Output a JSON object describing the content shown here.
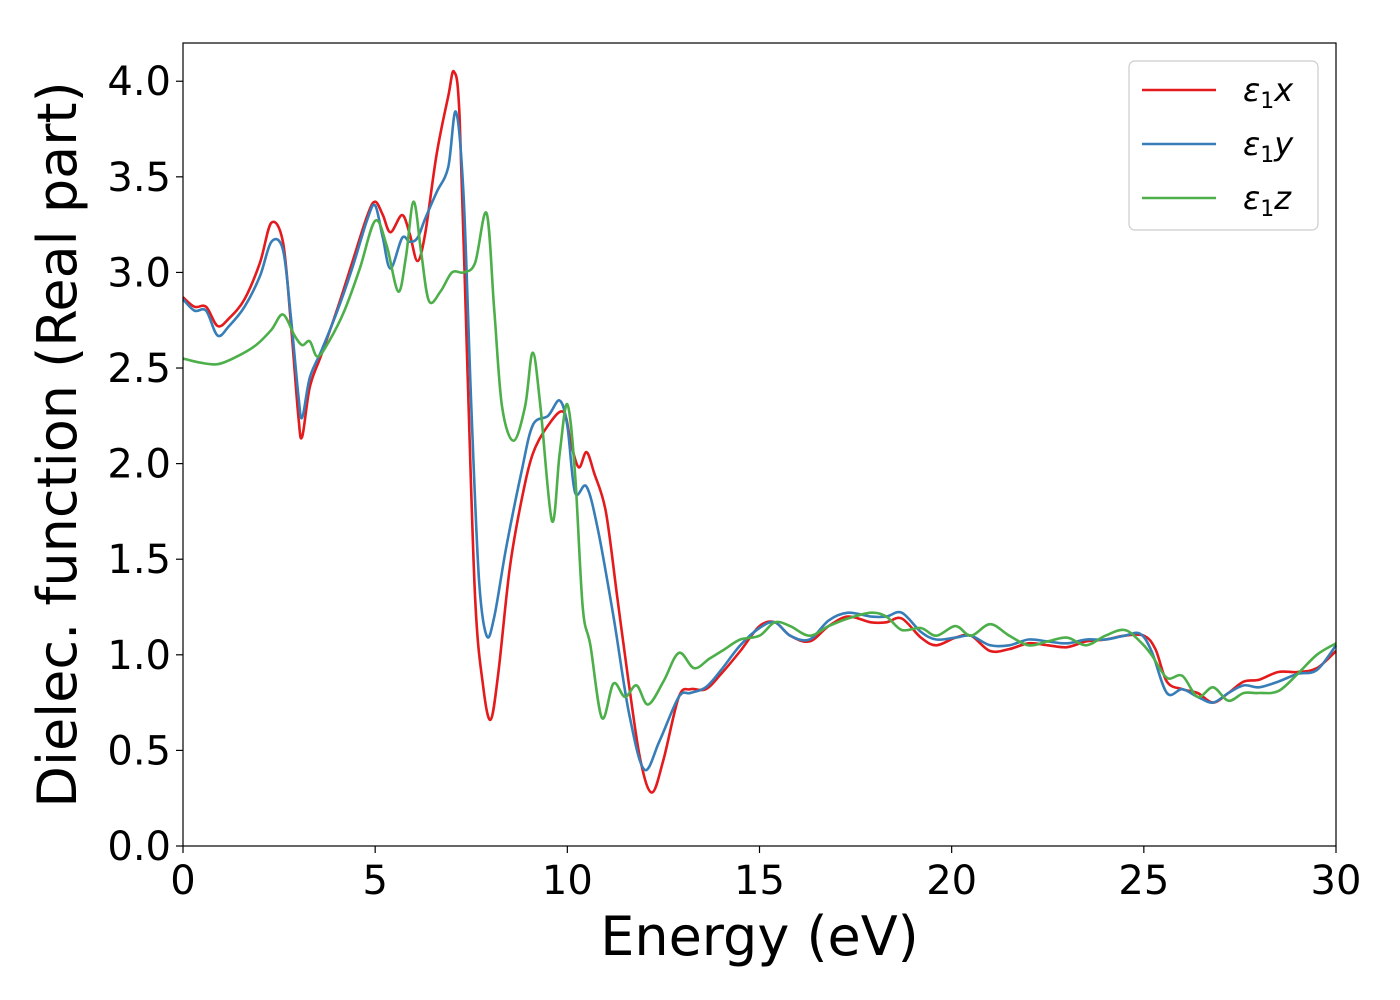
{
  "chart_data": {
    "type": "line",
    "title": "",
    "xlabel": "Energy (eV)",
    "ylabel": "Dielec. function (Real part)",
    "xlim": [
      0,
      30
    ],
    "ylim": [
      0,
      4.2
    ],
    "xticks": [
      0,
      5,
      10,
      15,
      20,
      25,
      30
    ],
    "xtick_labels": [
      "0",
      "5",
      "10",
      "15",
      "20",
      "25",
      "30"
    ],
    "yticks": [
      0,
      0.5,
      1.0,
      1.5,
      2.0,
      2.5,
      3.0,
      3.5,
      4.0
    ],
    "ytick_labels": [
      "0.0",
      "0.5",
      "1.0",
      "1.5",
      "2.0",
      "2.5",
      "3.0",
      "3.5",
      "4.0"
    ],
    "grid": false,
    "legend_position": "top-right",
    "series": [
      {
        "name": "ε₁x",
        "legend_main": "ε",
        "legend_sub": "1",
        "legend_tail": "x",
        "color": "#e41a1c",
        "points": [
          [
            0,
            2.87
          ],
          [
            0.3,
            2.82
          ],
          [
            0.6,
            2.82
          ],
          [
            0.9,
            2.72
          ],
          [
            1.2,
            2.76
          ],
          [
            1.6,
            2.86
          ],
          [
            2.0,
            3.05
          ],
          [
            2.3,
            3.26
          ],
          [
            2.6,
            3.16
          ],
          [
            2.8,
            2.75
          ],
          [
            3.0,
            2.25
          ],
          [
            3.1,
            2.14
          ],
          [
            3.3,
            2.4
          ],
          [
            3.6,
            2.57
          ],
          [
            4.0,
            2.8
          ],
          [
            4.4,
            3.05
          ],
          [
            4.8,
            3.3
          ],
          [
            5.0,
            3.37
          ],
          [
            5.2,
            3.3
          ],
          [
            5.4,
            3.21
          ],
          [
            5.7,
            3.3
          ],
          [
            5.9,
            3.2
          ],
          [
            6.1,
            3.06
          ],
          [
            6.3,
            3.2
          ],
          [
            6.6,
            3.62
          ],
          [
            6.9,
            3.92
          ],
          [
            7.05,
            4.05
          ],
          [
            7.2,
            3.8
          ],
          [
            7.4,
            2.5
          ],
          [
            7.6,
            1.3
          ],
          [
            7.8,
            0.85
          ],
          [
            8.0,
            0.66
          ],
          [
            8.2,
            0.9
          ],
          [
            8.5,
            1.45
          ],
          [
            8.8,
            1.8
          ],
          [
            9.1,
            2.05
          ],
          [
            9.5,
            2.2
          ],
          [
            9.9,
            2.27
          ],
          [
            10.1,
            2.1
          ],
          [
            10.3,
            1.98
          ],
          [
            10.5,
            2.06
          ],
          [
            10.7,
            1.95
          ],
          [
            11.0,
            1.75
          ],
          [
            11.3,
            1.3
          ],
          [
            11.6,
            0.85
          ],
          [
            11.9,
            0.45
          ],
          [
            12.2,
            0.28
          ],
          [
            12.5,
            0.45
          ],
          [
            12.9,
            0.78
          ],
          [
            13.2,
            0.82
          ],
          [
            13.6,
            0.82
          ],
          [
            14.0,
            0.9
          ],
          [
            14.5,
            1.02
          ],
          [
            15.0,
            1.15
          ],
          [
            15.4,
            1.17
          ],
          [
            15.8,
            1.1
          ],
          [
            16.3,
            1.07
          ],
          [
            16.8,
            1.15
          ],
          [
            17.3,
            1.2
          ],
          [
            17.9,
            1.17
          ],
          [
            18.3,
            1.17
          ],
          [
            18.7,
            1.19
          ],
          [
            19.2,
            1.09
          ],
          [
            19.6,
            1.05
          ],
          [
            20.1,
            1.09
          ],
          [
            20.5,
            1.1
          ],
          [
            21.0,
            1.02
          ],
          [
            21.5,
            1.03
          ],
          [
            22.0,
            1.06
          ],
          [
            22.5,
            1.05
          ],
          [
            23.0,
            1.04
          ],
          [
            23.5,
            1.07
          ],
          [
            24.0,
            1.08
          ],
          [
            24.5,
            1.1
          ],
          [
            25.0,
            1.1
          ],
          [
            25.3,
            1.03
          ],
          [
            25.6,
            0.86
          ],
          [
            26.0,
            0.82
          ],
          [
            26.4,
            0.8
          ],
          [
            26.8,
            0.75
          ],
          [
            27.2,
            0.8
          ],
          [
            27.6,
            0.86
          ],
          [
            28.0,
            0.87
          ],
          [
            28.5,
            0.91
          ],
          [
            29.0,
            0.91
          ],
          [
            29.5,
            0.93
          ],
          [
            30.0,
            1.02
          ]
        ]
      },
      {
        "name": "ε₁y",
        "legend_main": "ε",
        "legend_sub": "1",
        "legend_tail": "y",
        "color": "#377eb8",
        "points": [
          [
            0,
            2.86
          ],
          [
            0.3,
            2.8
          ],
          [
            0.6,
            2.8
          ],
          [
            0.9,
            2.67
          ],
          [
            1.2,
            2.72
          ],
          [
            1.6,
            2.82
          ],
          [
            2.0,
            2.98
          ],
          [
            2.3,
            3.16
          ],
          [
            2.6,
            3.12
          ],
          [
            2.8,
            2.78
          ],
          [
            3.0,
            2.36
          ],
          [
            3.1,
            2.24
          ],
          [
            3.3,
            2.45
          ],
          [
            3.6,
            2.59
          ],
          [
            4.0,
            2.79
          ],
          [
            4.4,
            3.02
          ],
          [
            4.8,
            3.28
          ],
          [
            5.0,
            3.35
          ],
          [
            5.2,
            3.18
          ],
          [
            5.4,
            3.02
          ],
          [
            5.7,
            3.18
          ],
          [
            5.9,
            3.16
          ],
          [
            6.1,
            3.18
          ],
          [
            6.3,
            3.28
          ],
          [
            6.6,
            3.42
          ],
          [
            6.9,
            3.55
          ],
          [
            7.1,
            3.84
          ],
          [
            7.3,
            3.4
          ],
          [
            7.5,
            2.3
          ],
          [
            7.7,
            1.4
          ],
          [
            7.9,
            1.1
          ],
          [
            8.1,
            1.2
          ],
          [
            8.4,
            1.55
          ],
          [
            8.8,
            1.95
          ],
          [
            9.1,
            2.2
          ],
          [
            9.5,
            2.25
          ],
          [
            9.8,
            2.33
          ],
          [
            10.0,
            2.2
          ],
          [
            10.2,
            1.85
          ],
          [
            10.5,
            1.88
          ],
          [
            10.8,
            1.65
          ],
          [
            11.2,
            1.2
          ],
          [
            11.6,
            0.7
          ],
          [
            12.0,
            0.4
          ],
          [
            12.4,
            0.55
          ],
          [
            12.9,
            0.78
          ],
          [
            13.2,
            0.8
          ],
          [
            13.6,
            0.83
          ],
          [
            14.0,
            0.92
          ],
          [
            14.5,
            1.05
          ],
          [
            15.0,
            1.14
          ],
          [
            15.4,
            1.17
          ],
          [
            15.8,
            1.1
          ],
          [
            16.3,
            1.08
          ],
          [
            16.8,
            1.18
          ],
          [
            17.3,
            1.22
          ],
          [
            17.9,
            1.2
          ],
          [
            18.3,
            1.2
          ],
          [
            18.7,
            1.22
          ],
          [
            19.2,
            1.12
          ],
          [
            19.6,
            1.08
          ],
          [
            20.1,
            1.09
          ],
          [
            20.5,
            1.1
          ],
          [
            21.0,
            1.05
          ],
          [
            21.5,
            1.05
          ],
          [
            22.0,
            1.08
          ],
          [
            22.5,
            1.07
          ],
          [
            23.0,
            1.06
          ],
          [
            23.5,
            1.08
          ],
          [
            24.0,
            1.08
          ],
          [
            24.5,
            1.1
          ],
          [
            24.9,
            1.11
          ],
          [
            25.2,
            1.02
          ],
          [
            25.6,
            0.8
          ],
          [
            26.0,
            0.82
          ],
          [
            26.4,
            0.78
          ],
          [
            26.8,
            0.75
          ],
          [
            27.2,
            0.8
          ],
          [
            27.6,
            0.84
          ],
          [
            28.0,
            0.83
          ],
          [
            28.5,
            0.86
          ],
          [
            29.0,
            0.9
          ],
          [
            29.5,
            0.92
          ],
          [
            30.0,
            1.05
          ]
        ]
      },
      {
        "name": "ε₁z",
        "legend_main": "ε",
        "legend_sub": "1",
        "legend_tail": "z",
        "color": "#4daf4a",
        "points": [
          [
            0,
            2.55
          ],
          [
            0.4,
            2.53
          ],
          [
            0.9,
            2.52
          ],
          [
            1.4,
            2.56
          ],
          [
            1.9,
            2.62
          ],
          [
            2.3,
            2.7
          ],
          [
            2.6,
            2.78
          ],
          [
            2.9,
            2.67
          ],
          [
            3.1,
            2.62
          ],
          [
            3.3,
            2.64
          ],
          [
            3.5,
            2.56
          ],
          [
            3.8,
            2.64
          ],
          [
            4.2,
            2.8
          ],
          [
            4.6,
            3.02
          ],
          [
            5.0,
            3.27
          ],
          [
            5.3,
            3.14
          ],
          [
            5.6,
            2.9
          ],
          [
            5.8,
            3.08
          ],
          [
            6.0,
            3.37
          ],
          [
            6.2,
            3.1
          ],
          [
            6.4,
            2.85
          ],
          [
            6.7,
            2.9
          ],
          [
            7.0,
            3.0
          ],
          [
            7.3,
            3.0
          ],
          [
            7.6,
            3.05
          ],
          [
            7.9,
            3.31
          ],
          [
            8.1,
            2.8
          ],
          [
            8.3,
            2.3
          ],
          [
            8.6,
            2.12
          ],
          [
            8.9,
            2.3
          ],
          [
            9.1,
            2.58
          ],
          [
            9.3,
            2.3
          ],
          [
            9.6,
            1.7
          ],
          [
            9.8,
            2.05
          ],
          [
            10.0,
            2.31
          ],
          [
            10.2,
            1.95
          ],
          [
            10.4,
            1.25
          ],
          [
            10.6,
            1.05
          ],
          [
            10.9,
            0.67
          ],
          [
            11.2,
            0.85
          ],
          [
            11.5,
            0.78
          ],
          [
            11.8,
            0.84
          ],
          [
            12.1,
            0.74
          ],
          [
            12.5,
            0.86
          ],
          [
            12.9,
            1.01
          ],
          [
            13.3,
            0.93
          ],
          [
            13.7,
            0.98
          ],
          [
            14.1,
            1.03
          ],
          [
            14.5,
            1.08
          ],
          [
            15.0,
            1.1
          ],
          [
            15.4,
            1.17
          ],
          [
            15.8,
            1.15
          ],
          [
            16.3,
            1.1
          ],
          [
            16.8,
            1.15
          ],
          [
            17.3,
            1.19
          ],
          [
            17.9,
            1.22
          ],
          [
            18.3,
            1.2
          ],
          [
            18.7,
            1.13
          ],
          [
            19.2,
            1.14
          ],
          [
            19.6,
            1.1
          ],
          [
            20.1,
            1.15
          ],
          [
            20.5,
            1.1
          ],
          [
            21.0,
            1.16
          ],
          [
            21.5,
            1.1
          ],
          [
            22.0,
            1.05
          ],
          [
            22.5,
            1.07
          ],
          [
            23.0,
            1.09
          ],
          [
            23.5,
            1.05
          ],
          [
            24.0,
            1.1
          ],
          [
            24.5,
            1.13
          ],
          [
            24.9,
            1.07
          ],
          [
            25.2,
            1.0
          ],
          [
            25.6,
            0.88
          ],
          [
            26.0,
            0.89
          ],
          [
            26.4,
            0.78
          ],
          [
            26.8,
            0.83
          ],
          [
            27.2,
            0.76
          ],
          [
            27.6,
            0.8
          ],
          [
            28.0,
            0.8
          ],
          [
            28.5,
            0.81
          ],
          [
            29.0,
            0.9
          ],
          [
            29.5,
            1.0
          ],
          [
            30.0,
            1.06
          ]
        ]
      }
    ]
  }
}
